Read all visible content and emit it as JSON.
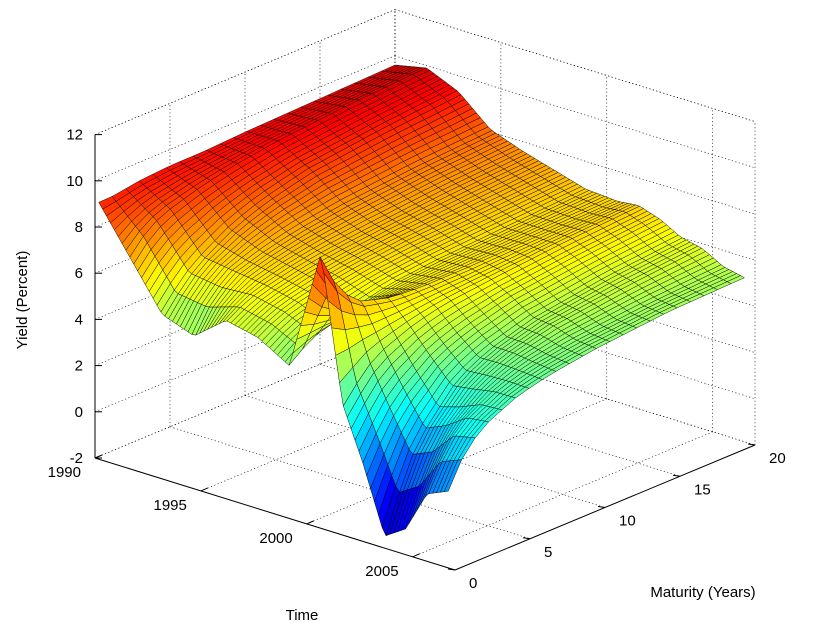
{
  "chart_data": {
    "type": "surface",
    "title": "",
    "xlabel": "Time",
    "ylabel": "Maturity (Years)",
    "zlabel": "Yield (Percent)",
    "xlim": [
      1990,
      2007
    ],
    "ylim": [
      0,
      20
    ],
    "zlim": [
      -2,
      12
    ],
    "x_ticks": [
      "1990",
      "1995",
      "2000",
      "2005"
    ],
    "y_ticks": [
      "0",
      "5",
      "10",
      "15",
      "20"
    ],
    "z_ticks": [
      "-2",
      "0",
      "2",
      "4",
      "6",
      "8",
      "10",
      "12"
    ],
    "colormap": "jet",
    "grid": true,
    "series": [
      {
        "time": [
          1990.0,
          1991.5,
          1993.0,
          1994.5,
          1996.0,
          1997.5,
          1999.0,
          2000.5,
          2001.5,
          2002.5,
          2003.5,
          2004.5,
          2005.5,
          2006.5
        ],
        "maturity": [
          0.25,
          1,
          2,
          3,
          5,
          7,
          10,
          15,
          20
        ],
        "yield": [
          [
            9.0,
            9.0,
            9.1,
            9.2,
            9.3,
            9.3,
            9.4,
            9.5,
            9.6
          ],
          [
            7.0,
            7.6,
            8.1,
            8.4,
            8.8,
            9.1,
            9.4,
            9.7,
            9.9
          ],
          [
            5.0,
            5.6,
            6.3,
            6.8,
            7.6,
            8.1,
            8.6,
            9.0,
            9.3
          ],
          [
            4.5,
            5.4,
            6.1,
            6.6,
            7.0,
            7.3,
            7.6,
            7.9,
            8.1
          ],
          [
            5.6,
            5.9,
            6.2,
            6.4,
            6.7,
            6.9,
            7.1,
            7.4,
            7.6
          ],
          [
            5.3,
            5.6,
            5.9,
            6.1,
            6.4,
            6.6,
            6.8,
            7.0,
            7.2
          ],
          [
            4.5,
            4.9,
            5.3,
            5.5,
            5.9,
            6.2,
            6.4,
            6.6,
            6.8
          ],
          [
            9.8,
            8.6,
            7.6,
            7.0,
            6.6,
            6.5,
            6.5,
            6.6,
            6.7
          ],
          [
            3.6,
            4.2,
            4.9,
            5.3,
            5.8,
            6.1,
            6.3,
            6.6,
            6.8
          ],
          [
            1.2,
            2.1,
            3.1,
            3.8,
            4.8,
            5.3,
            5.8,
            6.2,
            6.5
          ],
          [
            -1.6,
            -0.2,
            1.4,
            2.4,
            3.9,
            4.6,
            5.2,
            5.7,
            6.0
          ],
          [
            -1.0,
            0.4,
            1.8,
            2.8,
            4.0,
            4.6,
            5.1,
            5.5,
            5.8
          ],
          [
            0.8,
            1.8,
            2.8,
            3.4,
            4.1,
            4.5,
            4.8,
            5.1,
            5.3
          ],
          [
            1.2,
            2.2,
            3.0,
            3.5,
            4.1,
            4.4,
            4.7,
            5.0,
            5.1
          ]
        ]
      }
    ]
  }
}
